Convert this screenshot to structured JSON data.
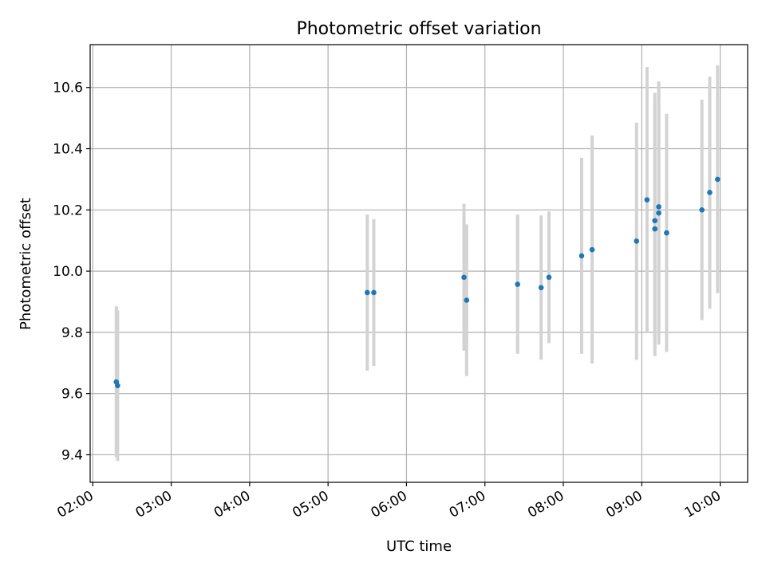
{
  "chart_data": {
    "type": "scatter",
    "title": "Photometric offset variation",
    "xlabel": "UTC time",
    "ylabel": "Photometric offset",
    "x_axis": {
      "kind": "time",
      "range": [
        "01:58",
        "10:21"
      ],
      "ticks": [
        "02:00",
        "03:00",
        "04:00",
        "05:00",
        "06:00",
        "07:00",
        "08:00",
        "09:00",
        "10:00"
      ],
      "tick_label_rotation": "30deg"
    },
    "y_axis": {
      "range": [
        9.31,
        10.74
      ],
      "ticks": [
        9.4,
        9.6,
        9.8,
        10.0,
        10.2,
        10.4,
        10.6
      ],
      "tick_labels": [
        "9.4",
        "9.6",
        "9.8",
        "10.0",
        "10.2",
        "10.4",
        "10.6"
      ]
    },
    "grid": true,
    "colors": {
      "point": "#1f77b4",
      "errorbar": "#d3d3d3"
    },
    "series": [
      {
        "points": [
          {
            "x": "02:18",
            "y": 9.638,
            "ylow": 9.392,
            "yhigh": 9.885
          },
          {
            "x": "02:19",
            "y": 9.626,
            "ylow": 9.38,
            "yhigh": 9.872
          },
          {
            "x": "05:30",
            "y": 9.93,
            "ylow": 9.675,
            "yhigh": 10.185
          },
          {
            "x": "05:35",
            "y": 9.93,
            "ylow": 9.69,
            "yhigh": 10.17
          },
          {
            "x": "06:44",
            "y": 9.98,
            "ylow": 9.74,
            "yhigh": 10.22
          },
          {
            "x": "06:46",
            "y": 9.905,
            "ylow": 9.657,
            "yhigh": 10.153
          },
          {
            "x": "07:25",
            "y": 9.957,
            "ylow": 9.73,
            "yhigh": 10.185
          },
          {
            "x": "07:43",
            "y": 9.946,
            "ylow": 9.71,
            "yhigh": 10.182
          },
          {
            "x": "07:49",
            "y": 9.98,
            "ylow": 9.765,
            "yhigh": 10.195
          },
          {
            "x": "08:14",
            "y": 10.05,
            "ylow": 9.73,
            "yhigh": 10.37
          },
          {
            "x": "08:22",
            "y": 10.07,
            "ylow": 9.698,
            "yhigh": 10.443
          },
          {
            "x": "08:56",
            "y": 10.098,
            "ylow": 9.71,
            "yhigh": 10.485
          },
          {
            "x": "09:04",
            "y": 10.233,
            "ylow": 9.8,
            "yhigh": 10.667
          },
          {
            "x": "09:10",
            "y": 10.165,
            "ylow": 9.748,
            "yhigh": 10.583
          },
          {
            "x": "09:10",
            "y": 10.138,
            "ylow": 9.723,
            "yhigh": 10.553
          },
          {
            "x": "09:13",
            "y": 10.21,
            "ylow": 9.81,
            "yhigh": 10.61
          },
          {
            "x": "09:13",
            "y": 10.19,
            "ylow": 9.76,
            "yhigh": 10.62
          },
          {
            "x": "09:19",
            "y": 10.125,
            "ylow": 9.736,
            "yhigh": 10.514
          },
          {
            "x": "09:46",
            "y": 10.2,
            "ylow": 9.84,
            "yhigh": 10.56
          },
          {
            "x": "09:52",
            "y": 10.257,
            "ylow": 9.877,
            "yhigh": 10.635
          },
          {
            "x": "09:58",
            "y": 10.3,
            "ylow": 9.928,
            "yhigh": 10.672
          }
        ]
      }
    ]
  }
}
